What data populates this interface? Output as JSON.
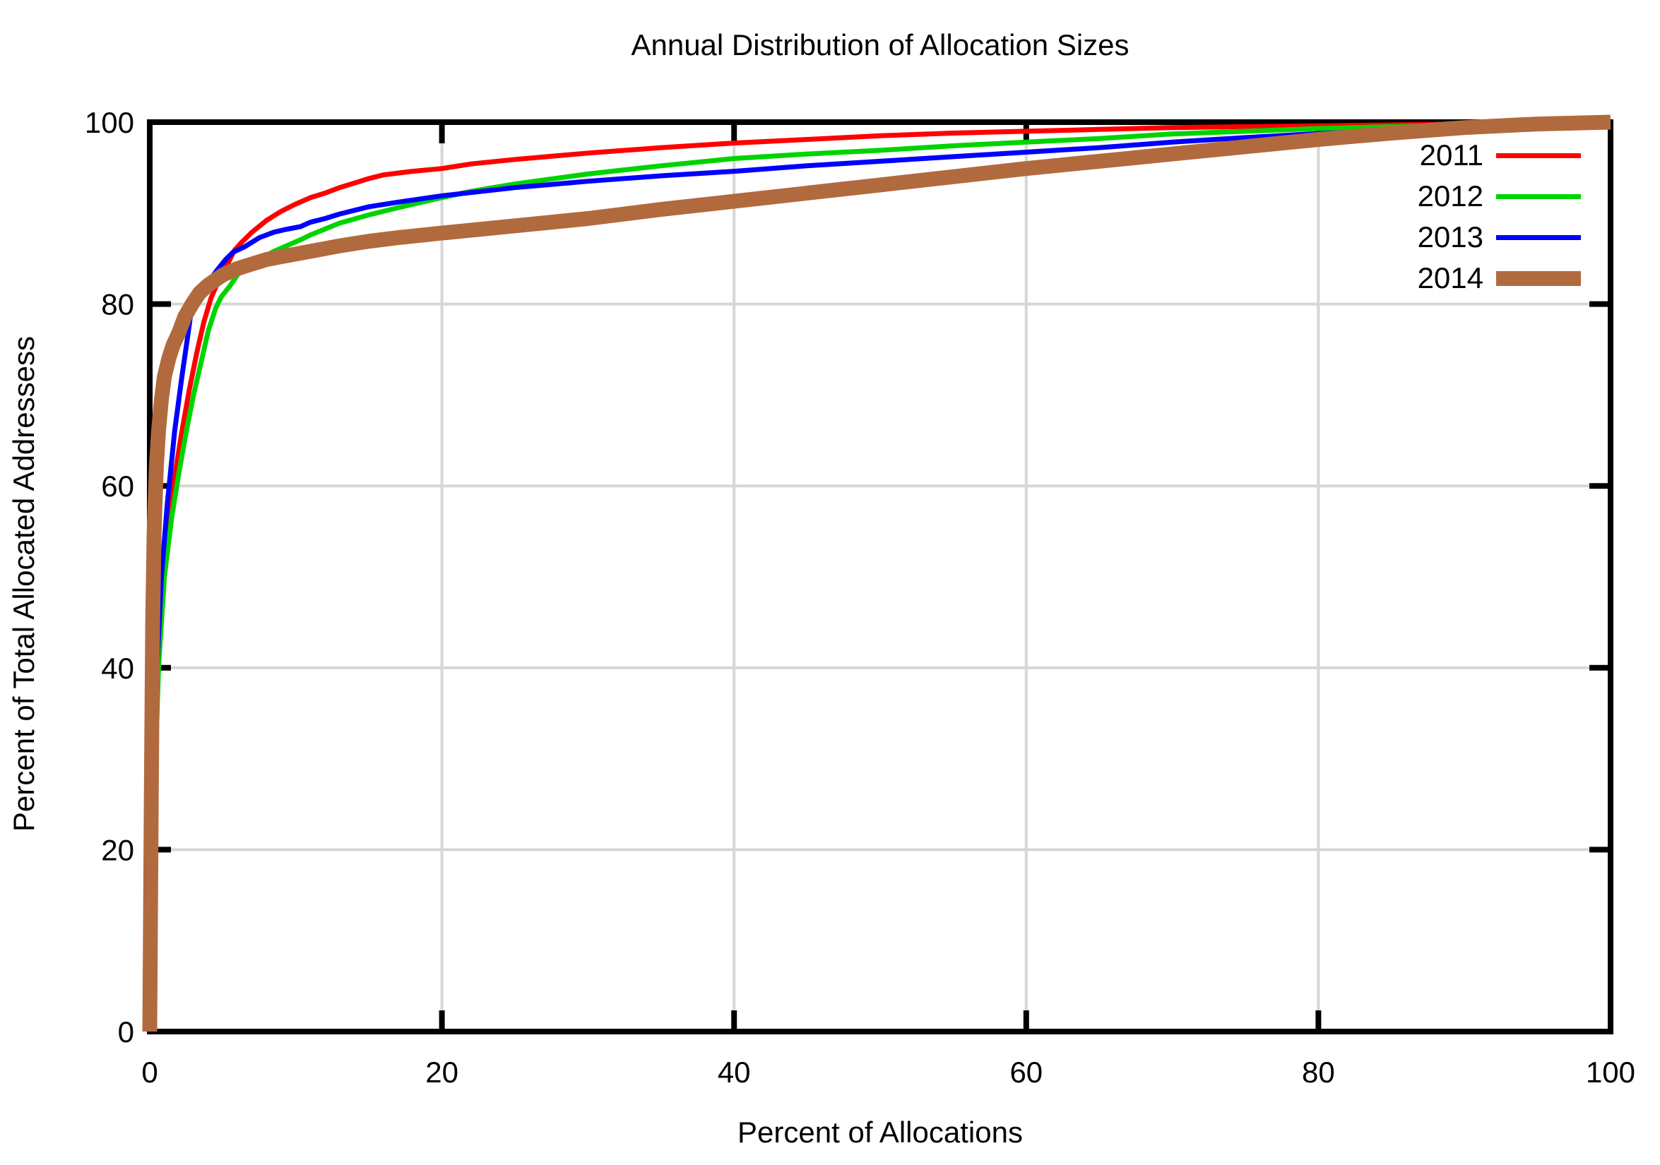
{
  "page": {
    "background": "#ffffff",
    "text_color": "#000000"
  },
  "chart_data": {
    "type": "line",
    "title": "Annual Distribution of Allocation Sizes",
    "xlabel": "Percent of Allocations",
    "ylabel": "Percent of Total Allocated Addressess",
    "xlim": [
      0,
      100
    ],
    "ylim": [
      0,
      100
    ],
    "x_ticks": [
      0,
      20,
      40,
      60,
      80,
      100
    ],
    "y_ticks": [
      0,
      20,
      40,
      60,
      80,
      100
    ],
    "grid": true,
    "grid_color": "#d6d6d6",
    "axis_color": "#000000",
    "legend_position": "top-right-inside",
    "series": [
      {
        "name": "2011",
        "color": "#ff0000",
        "line_width": 7,
        "points": [
          [
            0,
            0
          ],
          [
            0.2,
            12
          ],
          [
            0.35,
            25
          ],
          [
            0.5,
            40
          ],
          [
            0.8,
            48
          ],
          [
            1.2,
            55
          ],
          [
            1.7,
            61
          ],
          [
            2.2,
            66
          ],
          [
            2.7,
            70.5
          ],
          [
            3.2,
            74.5
          ],
          [
            3.7,
            78
          ],
          [
            4.2,
            80.7
          ],
          [
            4.8,
            82.9
          ],
          [
            5.3,
            84.3
          ],
          [
            5.8,
            85.9
          ],
          [
            6.3,
            86.8
          ],
          [
            7,
            87.9
          ],
          [
            8,
            89.2
          ],
          [
            9,
            90.2
          ],
          [
            10,
            91.0
          ],
          [
            11,
            91.7
          ],
          [
            12,
            92.2
          ],
          [
            13,
            92.8
          ],
          [
            14,
            93.3
          ],
          [
            15,
            93.8
          ],
          [
            16,
            94.2
          ],
          [
            17,
            94.4
          ],
          [
            18,
            94.6
          ],
          [
            20,
            94.9
          ],
          [
            22,
            95.4
          ],
          [
            25,
            95.9
          ],
          [
            30,
            96.6
          ],
          [
            35,
            97.2
          ],
          [
            40,
            97.7
          ],
          [
            45,
            98.1
          ],
          [
            50,
            98.5
          ],
          [
            55,
            98.8
          ],
          [
            60,
            99.0
          ],
          [
            65,
            99.2
          ],
          [
            70,
            99.4
          ],
          [
            75,
            99.5
          ],
          [
            80,
            99.6
          ],
          [
            85,
            99.7
          ],
          [
            90,
            99.8
          ],
          [
            95,
            99.9
          ],
          [
            100,
            100
          ]
        ]
      },
      {
        "name": "2012",
        "color": "#00d400",
        "line_width": 7,
        "points": [
          [
            0,
            0
          ],
          [
            0.25,
            15
          ],
          [
            0.4,
            30
          ],
          [
            0.6,
            40
          ],
          [
            1.0,
            50
          ],
          [
            1.5,
            56.5
          ],
          [
            2.0,
            61.5
          ],
          [
            2.5,
            66
          ],
          [
            3.0,
            70
          ],
          [
            3.5,
            73.5
          ],
          [
            4.0,
            77
          ],
          [
            4.5,
            79.5
          ],
          [
            4.9,
            80.8
          ],
          [
            5.5,
            82
          ],
          [
            6,
            83.2
          ],
          [
            6.8,
            84.3
          ],
          [
            7.5,
            84.9
          ],
          [
            8.5,
            85.8
          ],
          [
            9.5,
            86.5
          ],
          [
            10.5,
            87.2
          ],
          [
            11,
            87.6
          ],
          [
            13,
            88.9
          ],
          [
            15,
            89.8
          ],
          [
            17,
            90.6
          ],
          [
            20,
            91.7
          ],
          [
            22,
            92.4
          ],
          [
            25,
            93.2
          ],
          [
            30,
            94.3
          ],
          [
            35,
            95.2
          ],
          [
            40,
            96.0
          ],
          [
            45,
            96.5
          ],
          [
            50,
            96.9
          ],
          [
            55,
            97.4
          ],
          [
            60,
            97.8
          ],
          [
            65,
            98.2
          ],
          [
            70,
            98.7
          ],
          [
            75,
            99.0
          ],
          [
            80,
            99.3
          ],
          [
            85,
            99.5
          ],
          [
            90,
            99.7
          ],
          [
            95,
            99.85
          ],
          [
            100,
            100
          ]
        ]
      },
      {
        "name": "2013",
        "color": "#0000ff",
        "line_width": 7,
        "points": [
          [
            0,
            0
          ],
          [
            0.2,
            20
          ],
          [
            0.35,
            32
          ],
          [
            0.5,
            40
          ],
          [
            0.8,
            50
          ],
          [
            1.2,
            58
          ],
          [
            1.7,
            66
          ],
          [
            2.2,
            72
          ],
          [
            2.6,
            76.5
          ],
          [
            2.9,
            80
          ],
          [
            3.3,
            81.2
          ],
          [
            4,
            82.4
          ],
          [
            4.6,
            83.7
          ],
          [
            5.2,
            84.9
          ],
          [
            5.7,
            85.7
          ],
          [
            6.5,
            86.3
          ],
          [
            7.5,
            87.3
          ],
          [
            8.5,
            87.9
          ],
          [
            9.3,
            88.2
          ],
          [
            10.3,
            88.5
          ],
          [
            11,
            89.0
          ],
          [
            12,
            89.4
          ],
          [
            13,
            89.9
          ],
          [
            15,
            90.7
          ],
          [
            17,
            91.2
          ],
          [
            20,
            91.9
          ],
          [
            25,
            92.8
          ],
          [
            30,
            93.5
          ],
          [
            35,
            94.1
          ],
          [
            40,
            94.6
          ],
          [
            45,
            95.2
          ],
          [
            50,
            95.7
          ],
          [
            55,
            96.2
          ],
          [
            60,
            96.7
          ],
          [
            65,
            97.2
          ],
          [
            70,
            97.8
          ],
          [
            75,
            98.3
          ],
          [
            80,
            98.75
          ],
          [
            85,
            99.1
          ],
          [
            90,
            99.45
          ],
          [
            95,
            99.7
          ],
          [
            100,
            100
          ]
        ]
      },
      {
        "name": "2014",
        "color": "#b16a3e",
        "line_width": 21,
        "points": [
          [
            0,
            0
          ],
          [
            0.1,
            25
          ],
          [
            0.2,
            45
          ],
          [
            0.3,
            55
          ],
          [
            0.45,
            62
          ],
          [
            0.6,
            66
          ],
          [
            0.8,
            69.5
          ],
          [
            1.0,
            72
          ],
          [
            1.3,
            74
          ],
          [
            1.6,
            75.5
          ],
          [
            2.0,
            76.9
          ],
          [
            2.4,
            78.6
          ],
          [
            2.9,
            80
          ],
          [
            3.4,
            81.2
          ],
          [
            4,
            82.1
          ],
          [
            5,
            83.2
          ],
          [
            6,
            83.9
          ],
          [
            7,
            84.4
          ],
          [
            8,
            84.9
          ],
          [
            9,
            85.2
          ],
          [
            10,
            85.5
          ],
          [
            11,
            85.8
          ],
          [
            13,
            86.4
          ],
          [
            15,
            86.9
          ],
          [
            17,
            87.3
          ],
          [
            20,
            87.8
          ],
          [
            25,
            88.6
          ],
          [
            30,
            89.4
          ],
          [
            35,
            90.4
          ],
          [
            40,
            91.3
          ],
          [
            45,
            92.2
          ],
          [
            50,
            93.1
          ],
          [
            55,
            94.0
          ],
          [
            60,
            94.9
          ],
          [
            65,
            95.7
          ],
          [
            70,
            96.5
          ],
          [
            75,
            97.3
          ],
          [
            80,
            98.1
          ],
          [
            85,
            98.8
          ],
          [
            90,
            99.4
          ],
          [
            95,
            99.8
          ],
          [
            100,
            100
          ]
        ]
      }
    ]
  }
}
